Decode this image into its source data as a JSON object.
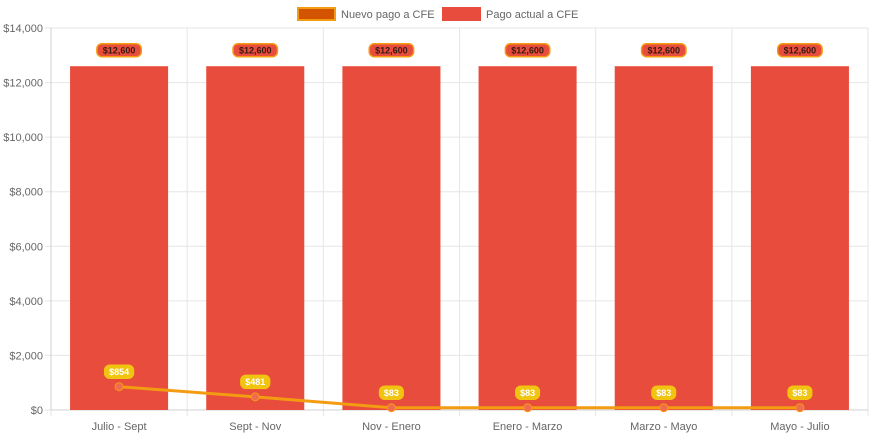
{
  "chart_data": {
    "type": "bar",
    "categories": [
      "Julio - Sept",
      "Sept - Nov",
      "Nov - Enero",
      "Enero - Marzo",
      "Marzo - Mayo",
      "Mayo - Julio"
    ],
    "series": [
      {
        "name": "Nuevo pago a CFE",
        "type": "line",
        "values": [
          854,
          481,
          83,
          83,
          83,
          83
        ],
        "labels": [
          "$854",
          "$481",
          "$83",
          "$83",
          "$83",
          "$83"
        ],
        "color": "#f39c12",
        "label_bg": "#f1c40f",
        "label_text_color": "#ffffff"
      },
      {
        "name": "Pago actual a CFE",
        "type": "bar",
        "values": [
          12600,
          12600,
          12600,
          12600,
          12600,
          12600
        ],
        "labels": [
          "$12,600",
          "$12,600",
          "$12,600",
          "$12,600",
          "$12,600",
          "$12,600"
        ],
        "color": "#e74c3c",
        "label_bg": "#e74c3c",
        "label_border": "#f39c12",
        "label_text_color": "#3a1a12"
      }
    ],
    "ylim": [
      0,
      14000
    ],
    "yticks": [
      0,
      2000,
      4000,
      6000,
      8000,
      10000,
      12000,
      14000
    ],
    "ytick_labels": [
      "$0",
      "$2,000",
      "$4,000",
      "$6,000",
      "$8,000",
      "$10,000",
      "$12,000",
      "$14,000"
    ],
    "grid": true,
    "legend_position": "top-center",
    "title": "",
    "xlabel": "",
    "ylabel": ""
  }
}
